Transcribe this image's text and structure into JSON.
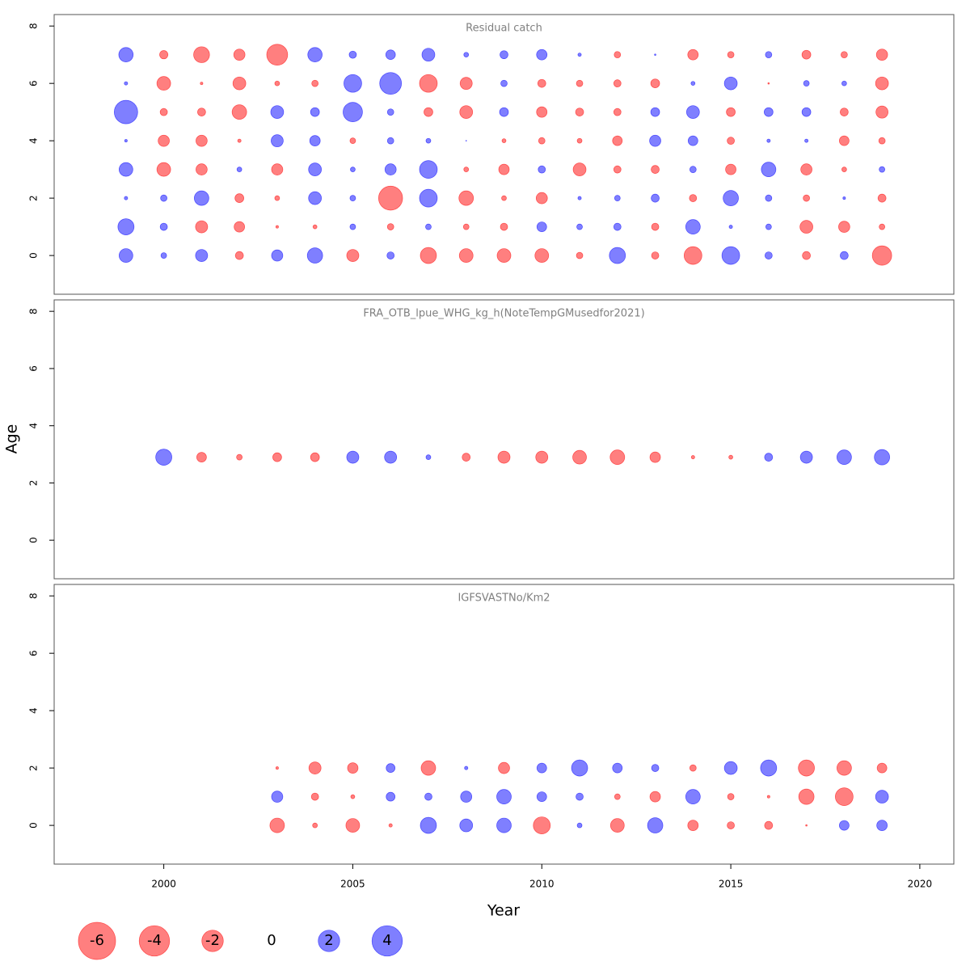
{
  "xlabel": "Year",
  "ylabel": "Age",
  "legend": [
    -6,
    -4,
    -2,
    0,
    2,
    4
  ],
  "colors": {
    "negative": "#ff0000",
    "positive": "#0000ff"
  },
  "chart_data": [
    {
      "type": "bubble",
      "title": "Residual catch",
      "x": [
        1999,
        2000,
        2001,
        2002,
        2003,
        2004,
        2005,
        2006,
        2007,
        2008,
        2009,
        2010,
        2011,
        2012,
        2013,
        2014,
        2015,
        2016,
        2017,
        2018,
        2019
      ],
      "y": [
        0,
        1,
        2,
        3,
        4,
        5,
        6,
        7
      ],
      "values": [
        [
          0.82,
          0.14,
          0.64,
          -0.28,
          0.55,
          1.02,
          -0.64,
          0.23,
          -1.13,
          -0.82,
          -0.82,
          -0.82,
          -0.18,
          1.13,
          -0.23,
          -1.37,
          1.37,
          0.23,
          -0.28,
          0.28,
          -1.63
        ],
        [
          1.13,
          0.23,
          -0.64,
          -0.48,
          -0.03,
          -0.07,
          0.14,
          -0.18,
          0.14,
          -0.14,
          -0.23,
          0.41,
          0.14,
          0.23,
          -0.23,
          0.92,
          0.05,
          0.14,
          -0.72,
          -0.55,
          -0.14
        ],
        [
          0.05,
          0.18,
          0.92,
          -0.34,
          -0.1,
          0.72,
          0.14,
          -2.5,
          1.37,
          -0.92,
          -0.1,
          -0.55,
          0.05,
          0.14,
          0.28,
          -0.23,
          1.02,
          0.18,
          -0.18,
          0.03,
          -0.28
        ],
        [
          0.82,
          -0.82,
          -0.55,
          0.1,
          -0.55,
          0.72,
          0.1,
          0.55,
          1.37,
          -0.1,
          -0.48,
          0.23,
          -0.72,
          -0.23,
          -0.28,
          0.18,
          -0.48,
          0.92,
          -0.55,
          -0.1,
          0.14
        ],
        [
          0.03,
          -0.55,
          -0.55,
          -0.05,
          0.64,
          0.48,
          -0.14,
          0.18,
          0.1,
          0.003,
          -0.07,
          -0.18,
          -0.1,
          -0.41,
          0.55,
          0.41,
          -0.23,
          0.05,
          0.05,
          -0.41,
          -0.18
        ],
        [
          2.38,
          -0.23,
          -0.28,
          -0.92,
          0.72,
          0.34,
          1.63,
          0.18,
          -0.34,
          -0.72,
          0.34,
          -0.48,
          -0.28,
          -0.23,
          0.34,
          0.72,
          -0.34,
          0.34,
          0.34,
          -0.28,
          -0.64
        ],
        [
          0.05,
          -0.82,
          -0.03,
          -0.72,
          -0.1,
          -0.18,
          1.37,
          2.06,
          -1.37,
          -0.64,
          0.18,
          -0.28,
          -0.18,
          -0.23,
          -0.34,
          0.07,
          0.72,
          -0.01,
          0.14,
          0.1,
          -0.72
        ],
        [
          0.9,
          -0.3,
          -1.1,
          -0.55,
          -1.9,
          0.9,
          0.23,
          0.4,
          0.72,
          0.1,
          0.28,
          0.48,
          0.05,
          -0.18,
          0.01,
          -0.48,
          -0.18,
          0.18,
          -0.34,
          -0.18,
          -0.55
        ]
      ],
      "xlim": [
        1997.1,
        2020.9
      ],
      "ylim": [
        -1.35,
        8.4
      ],
      "yticks": [
        0,
        2,
        4,
        6,
        8
      ]
    },
    {
      "type": "bubble",
      "title": "FRA_OTB_lpue_WHG_kg_h(NoteTempGMusedfor2021)",
      "x": [
        2000,
        2001,
        2002,
        2003,
        2004,
        2005,
        2006,
        2007,
        2008,
        2009,
        2010,
        2011,
        2012,
        2013,
        2014,
        2015,
        2016,
        2017,
        2018,
        2019
      ],
      "y": [
        2.9
      ],
      "values": [
        [
          1.13,
          -0.41,
          -0.14,
          -0.34,
          -0.34,
          0.64,
          0.64,
          0.1,
          -0.28,
          -0.64,
          -0.64,
          -0.82,
          -0.92,
          -0.48,
          -0.05,
          -0.07,
          0.28,
          0.64,
          0.92,
          1.02
        ]
      ],
      "xlim": [
        1997.1,
        2020.9
      ],
      "ylim": [
        -1.35,
        8.4
      ],
      "yticks": [
        0,
        2,
        4,
        6,
        8
      ]
    },
    {
      "type": "bubble",
      "title": "IGFSVASTNo/Km2",
      "x": [
        2003,
        2004,
        2005,
        2006,
        2007,
        2008,
        2009,
        2010,
        2011,
        2012,
        2013,
        2014,
        2015,
        2016,
        2017,
        2018,
        2019
      ],
      "y": [
        0,
        1,
        2
      ],
      "values": [
        [
          -0.92,
          -0.1,
          -0.82,
          -0.05,
          1.13,
          0.72,
          0.92,
          -1.25,
          0.1,
          -0.82,
          1.02,
          -0.48,
          -0.23,
          -0.28,
          -0.01,
          0.41,
          0.48
        ],
        [
          0.55,
          -0.23,
          -0.07,
          0.34,
          0.23,
          0.55,
          0.92,
          0.41,
          0.23,
          -0.14,
          -0.48,
          0.92,
          -0.18,
          -0.03,
          -1.02,
          -1.37,
          0.72
        ],
        [
          -0.03,
          -0.64,
          -0.48,
          0.34,
          -0.92,
          0.05,
          -0.55,
          0.41,
          1.13,
          0.41,
          0.23,
          -0.18,
          0.72,
          1.13,
          -1.13,
          -0.92,
          -0.41
        ]
      ],
      "xlim": [
        1997.1,
        2020.9
      ],
      "ylim": [
        -1.35,
        8.4
      ],
      "yticks": [
        0,
        2,
        4,
        6,
        8
      ],
      "xticks": [
        2000,
        2005,
        2010,
        2015,
        2020
      ]
    }
  ]
}
